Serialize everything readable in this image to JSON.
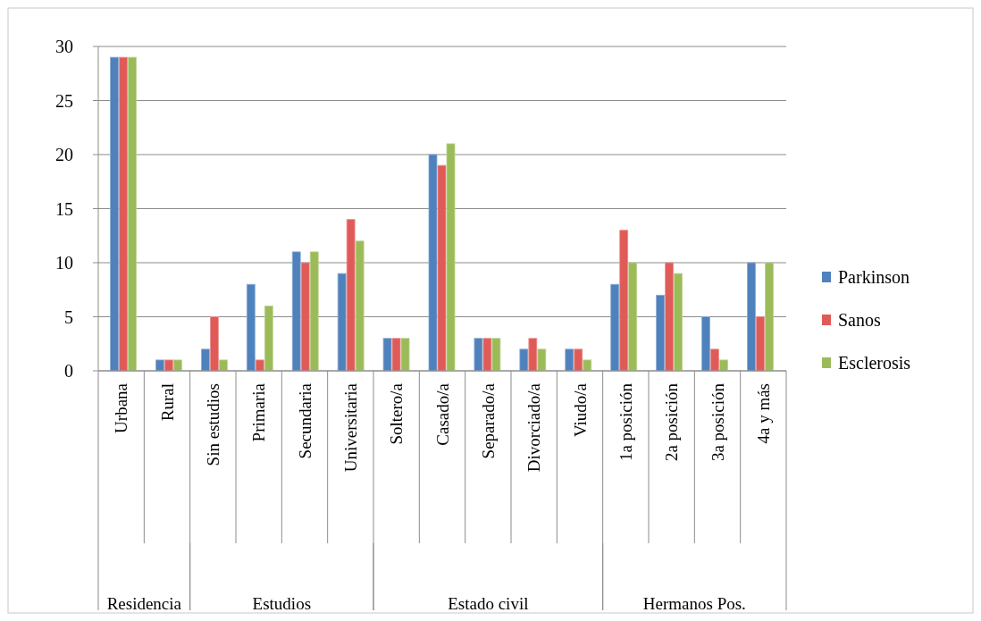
{
  "chart_data": {
    "type": "bar",
    "categories": [
      "Urbana",
      "Rural",
      "Sin estudios",
      "Primaria",
      "Secundaria",
      "Universitaria",
      "Soltero/a",
      "Casado/a",
      "Separado/a",
      "Divorciado/a",
      "Viudo/a",
      "1a posición",
      "2a posición",
      "3a posición",
      "4a y más"
    ],
    "series": [
      {
        "name": "Parkinson",
        "color": "#4f81bd",
        "values": [
          29,
          1,
          2,
          8,
          11,
          9,
          3,
          20,
          3,
          2,
          2,
          8,
          7,
          5,
          10
        ]
      },
      {
        "name": "Sanos",
        "color": "#e05b58",
        "values": [
          29,
          1,
          5,
          1,
          10,
          14,
          3,
          19,
          3,
          3,
          2,
          13,
          10,
          2,
          5
        ]
      },
      {
        "name": "Esclerosis",
        "color": "#9bbb59",
        "values": [
          29,
          1,
          1,
          6,
          11,
          12,
          3,
          21,
          3,
          2,
          1,
          10,
          9,
          1,
          10
        ]
      }
    ],
    "annotations": [
      "Residencia",
      "Estudios",
      "Estado civil",
      "Hermanos Pos."
    ],
    "ylim": [
      0,
      30
    ],
    "yticks": [
      0,
      5,
      10,
      15,
      20,
      25,
      30
    ],
    "grid": "y",
    "legend": "right"
  }
}
